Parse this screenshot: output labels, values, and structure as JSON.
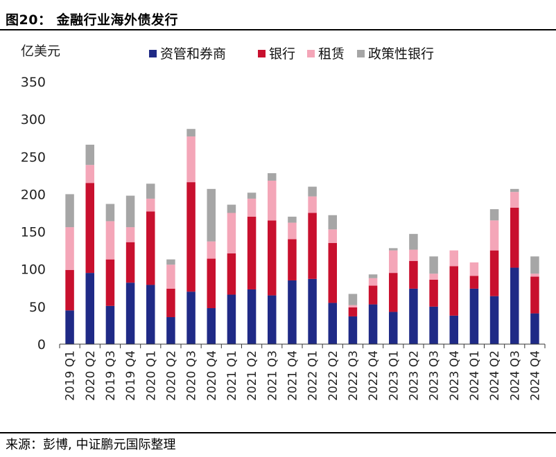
{
  "figure": {
    "title": "图20：  金融行业海外债发行",
    "source": "来源：彭博, 中证鹏元国际整理"
  },
  "chart_data": {
    "type": "bar",
    "stacked": true,
    "ylabel": "亿美元",
    "ylim": [
      0,
      350
    ],
    "yticks": [
      0,
      50,
      100,
      150,
      200,
      250,
      300,
      350
    ],
    "grid": false,
    "legend_position": "top",
    "categories": [
      "2019 Q1",
      "2020 Q2",
      "2019 Q3",
      "2019 Q4",
      "2020 Q1",
      "2020 Q2",
      "2020 Q3",
      "2020 Q4",
      "2021 Q1",
      "2021 Q2",
      "2021 Q3",
      "2021 Q4",
      "2022 Q1",
      "2022 Q2",
      "2022 Q3",
      "2022 Q4",
      "2023 Q1",
      "2023 Q2",
      "2023 Q3",
      "2023 Q4",
      "2024 Q1",
      "2024 Q2",
      "2024 Q3",
      "2024 Q4"
    ],
    "series": [
      {
        "name": "资管和券商",
        "color": "#1f2a86",
        "values": [
          45,
          95,
          51,
          82,
          79,
          36,
          70,
          48,
          66,
          73,
          65,
          85,
          87,
          55,
          37,
          53,
          43,
          74,
          50,
          38,
          74,
          64,
          102,
          41
        ]
      },
      {
        "name": "银行",
        "color": "#c8102e",
        "values": [
          54,
          120,
          62,
          54,
          98,
          38,
          146,
          66,
          55,
          97,
          100,
          55,
          88,
          80,
          12,
          25,
          52,
          37,
          36,
          66,
          17,
          61,
          80,
          49
        ]
      },
      {
        "name": "租赁",
        "color": "#f4a6b8",
        "values": [
          57,
          24,
          51,
          20,
          17,
          32,
          61,
          23,
          54,
          24,
          53,
          22,
          22,
          18,
          3,
          10,
          30,
          15,
          8,
          21,
          18,
          40,
          21,
          4
        ]
      },
      {
        "name": "政策性银行",
        "color": "#a6a6a6",
        "values": [
          44,
          27,
          23,
          42,
          20,
          7,
          10,
          70,
          11,
          8,
          10,
          8,
          13,
          19,
          15,
          5,
          3,
          21,
          23,
          0,
          0,
          15,
          4,
          23
        ]
      }
    ]
  }
}
